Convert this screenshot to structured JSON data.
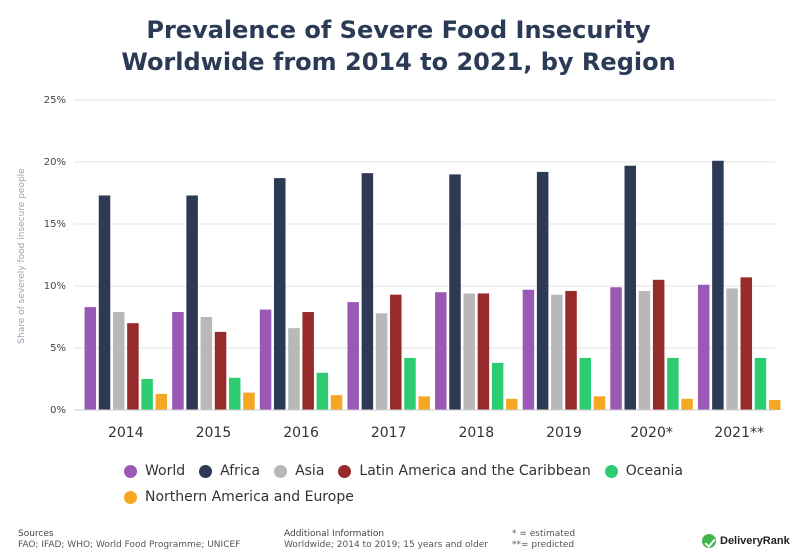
{
  "chart_data": {
    "type": "bar",
    "title_lines": [
      "Prevalence of Severe Food Insecurity",
      "Worldwide from 2014 to 2021, by Region"
    ],
    "ylabel": "Share of severely food insecure people",
    "xlabel": "",
    "ylim": [
      0,
      25
    ],
    "yticks": [
      "0%",
      "5%",
      "10%",
      "15%",
      "20%",
      "25%"
    ],
    "categories": [
      "2014",
      "2015",
      "2016",
      "2017",
      "2018",
      "2019",
      "2020*",
      "2021**"
    ],
    "series": [
      {
        "name": "World",
        "color": "#9b59b6",
        "values": [
          8.3,
          7.9,
          8.1,
          8.7,
          9.5,
          9.7,
          9.9,
          10.1
        ]
      },
      {
        "name": "Africa",
        "color": "#2d3a55",
        "values": [
          17.3,
          17.3,
          18.7,
          19.1,
          19.0,
          19.2,
          19.7,
          20.1
        ]
      },
      {
        "name": "Asia",
        "color": "#b8b8b8",
        "values": [
          7.9,
          7.5,
          6.6,
          7.8,
          9.4,
          9.3,
          9.6,
          9.8
        ]
      },
      {
        "name": "Latin America and the Caribbean",
        "color": "#962b2b",
        "values": [
          7.0,
          6.3,
          7.9,
          9.3,
          9.4,
          9.6,
          10.5,
          10.7
        ]
      },
      {
        "name": "Oceania",
        "color": "#2ecc71",
        "values": [
          2.5,
          2.6,
          3.0,
          4.2,
          3.8,
          4.2,
          4.2,
          4.2
        ]
      },
      {
        "name": "Northern America and Europe",
        "color": "#f5a623",
        "values": [
          1.3,
          1.4,
          1.2,
          1.1,
          0.9,
          1.1,
          0.9,
          0.8
        ]
      }
    ],
    "grid": true,
    "legend_position": "bottom"
  },
  "footer": {
    "sources_head": "Sources",
    "sources_text": "FAO; IFAD; WHO; World Food Programme; UNICEF",
    "info_head": "Additional Information",
    "info_text": "Worldwide; 2014 to 2019; 15 years and older",
    "note_estimated": "* = estimated",
    "note_predicted": "**= predicted",
    "brand": "DeliveryRank"
  }
}
